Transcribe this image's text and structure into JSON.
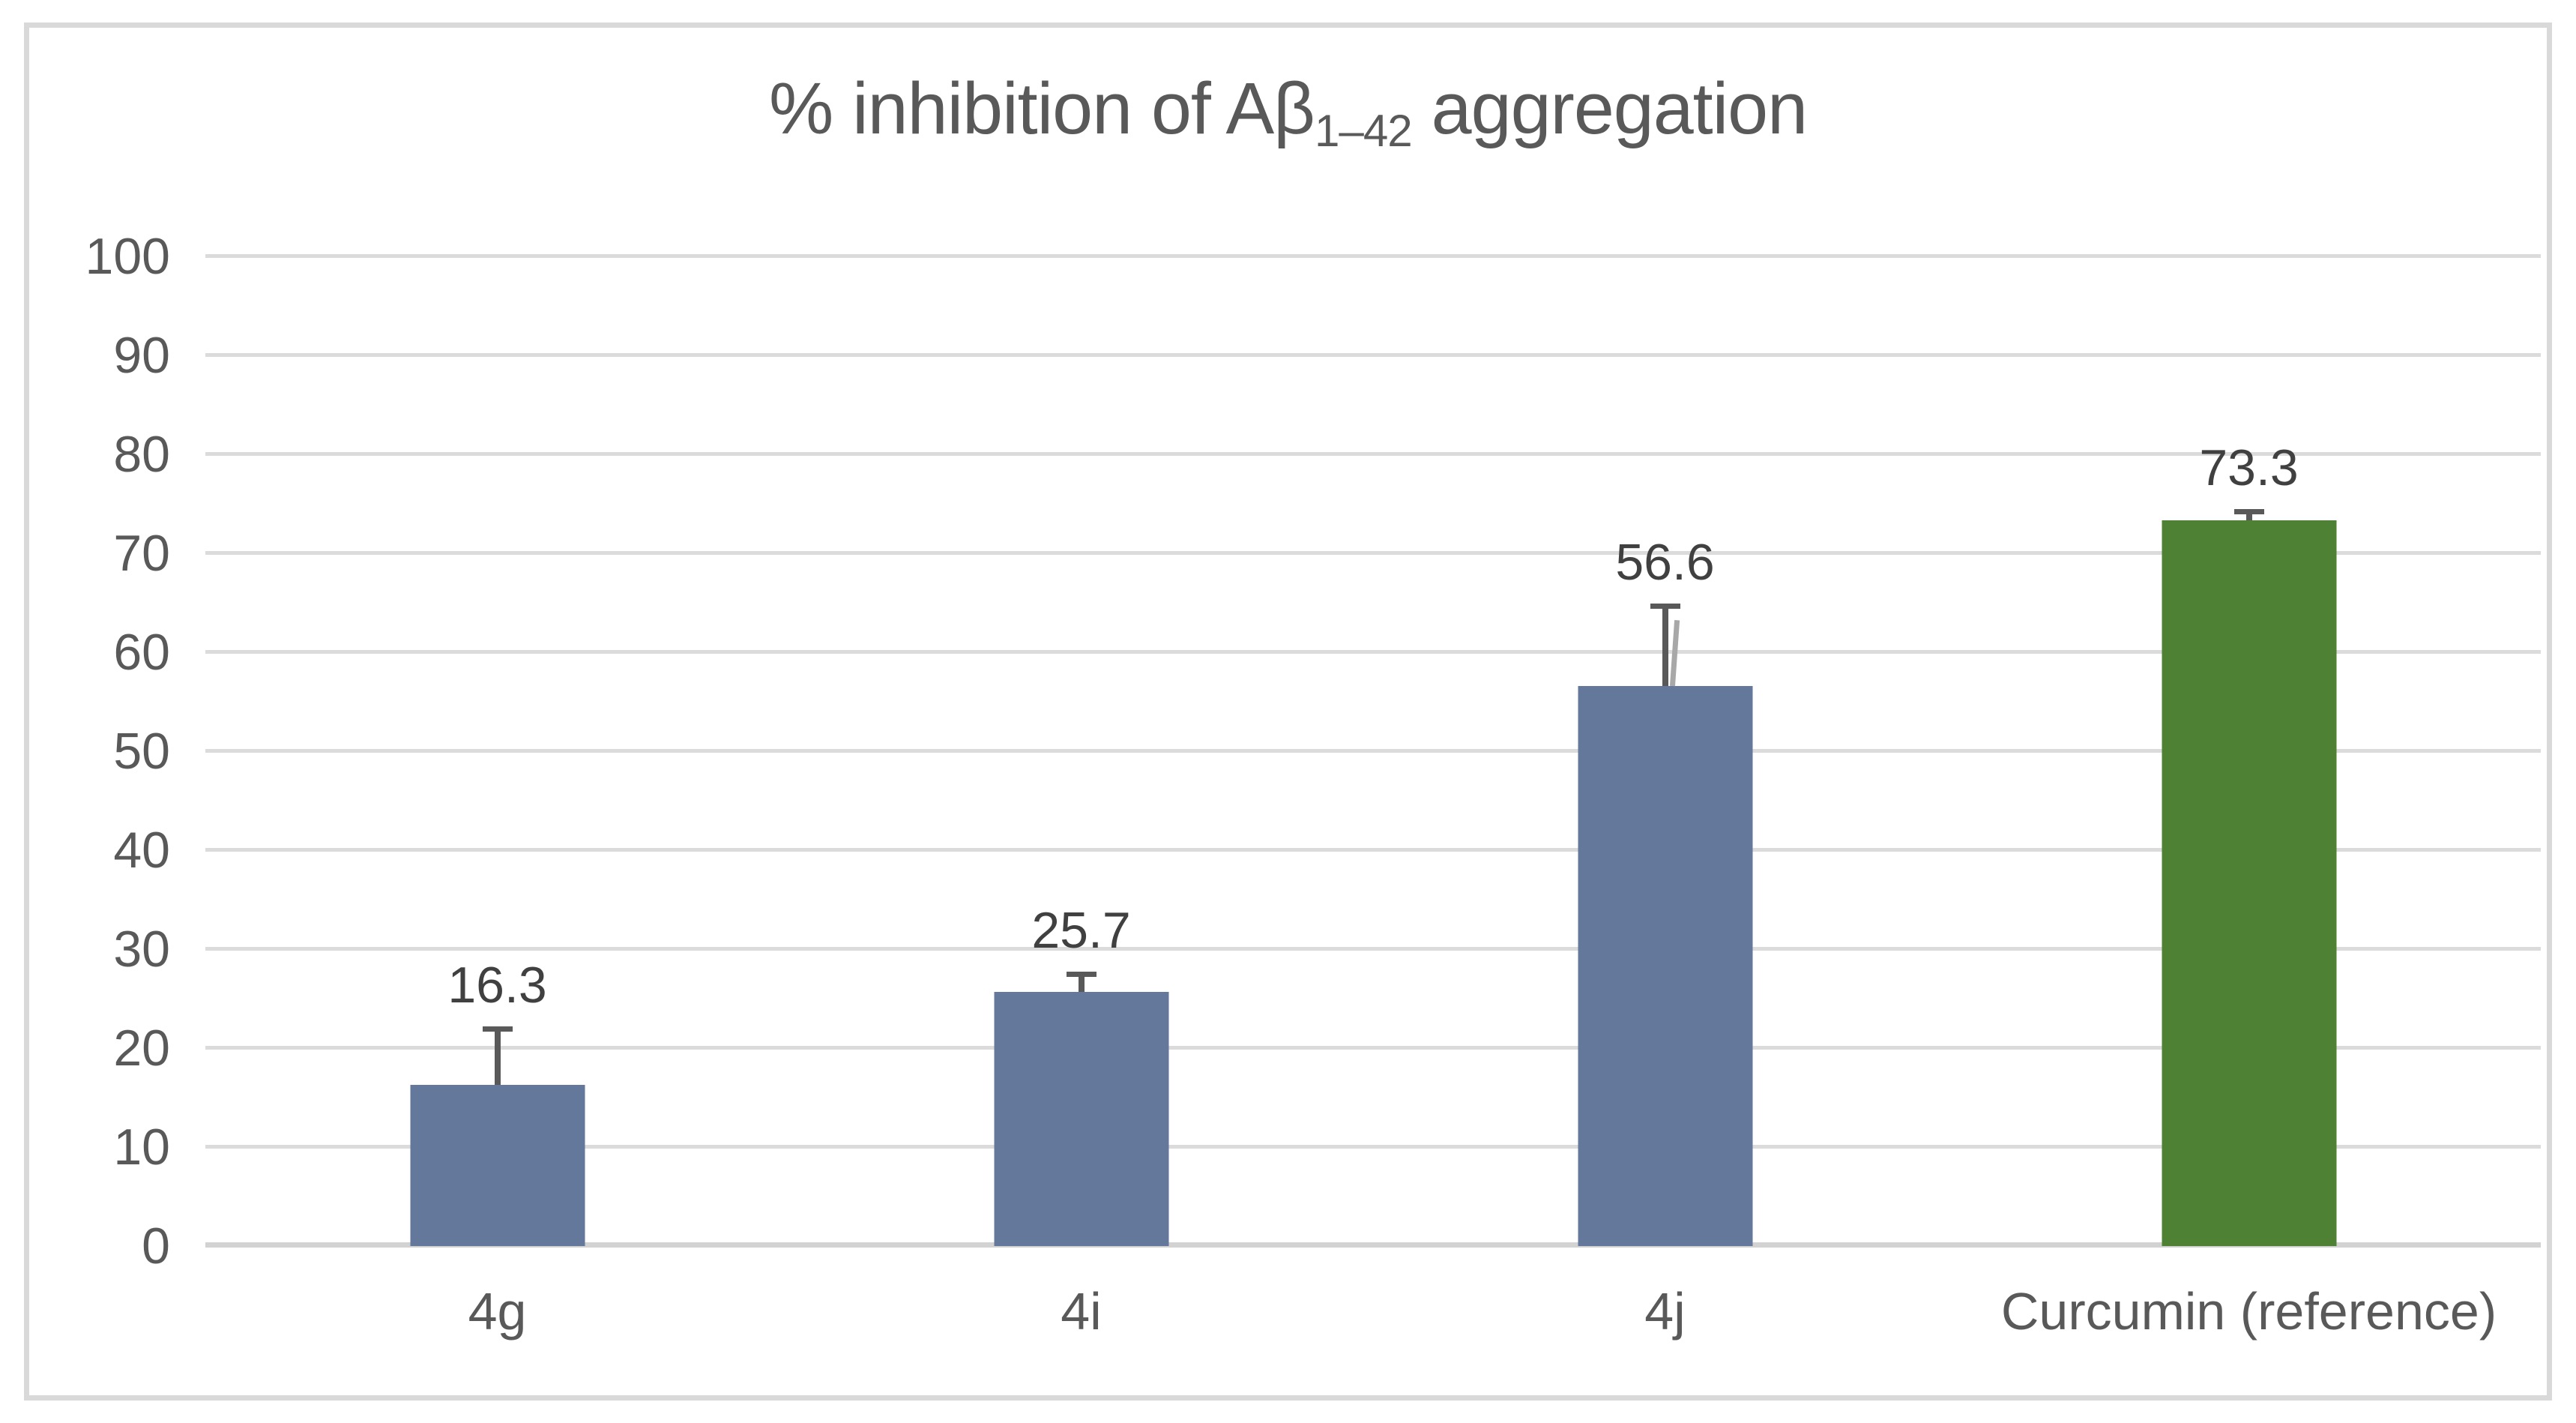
{
  "chart_data": {
    "type": "bar",
    "title": {
      "prefix": "% inhibition of Aβ",
      "subscript": "1–42",
      "suffix": " aggregation"
    },
    "categories": [
      "4g",
      "4i",
      "4j",
      "Curcumin (reference)"
    ],
    "values": [
      16.3,
      25.7,
      56.6,
      73.3
    ],
    "data_labels": [
      "16.3",
      "25.7",
      "56.6",
      "73.3"
    ],
    "error_upper": [
      5.9,
      2.0,
      8.3,
      1.2
    ],
    "error_diagonal_artifact": [
      false,
      false,
      true,
      false
    ],
    "bar_colors": [
      "#64789B",
      "#64789B",
      "#64789B",
      "#4F8134"
    ],
    "yticks": [
      100,
      90,
      80,
      70,
      60,
      50,
      40,
      30,
      20,
      10,
      0
    ],
    "ylim": [
      0,
      100
    ],
    "xlabel": "",
    "ylabel": "",
    "grid": true,
    "legend_position": "none",
    "colors": {
      "series_default": "#64789B",
      "series_reference": "#4F8134",
      "text": "#595959",
      "data_label_text": "#404040",
      "gridline": "#DBDBDB",
      "error_bar": "#595959",
      "frame_border": "#D9D9D9",
      "background": "#FFFFFF"
    }
  }
}
